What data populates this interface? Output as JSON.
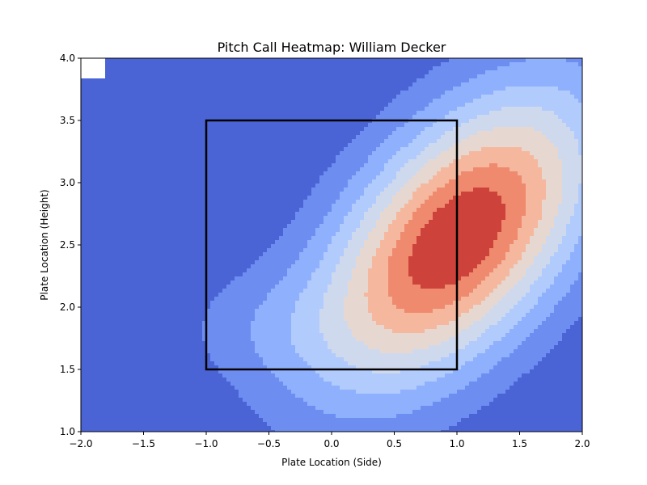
{
  "chart_data": {
    "type": "heatmap",
    "subtype": "filled-contour",
    "title": "Pitch Call Heatmap: William Decker",
    "xlabel": "Plate Location (Side)",
    "ylabel": "Plate Location (Height)",
    "xlim": [
      -2.0,
      2.0
    ],
    "ylim": [
      1.0,
      4.0
    ],
    "xticks": [
      "−2.0",
      "−1.5",
      "−1.0",
      "−0.5",
      "0.0",
      "0.5",
      "1.0",
      "1.5",
      "2.0"
    ],
    "xtick_values": [
      -2.0,
      -1.5,
      -1.0,
      -0.5,
      0.0,
      0.5,
      1.0,
      1.5,
      2.0
    ],
    "yticks": [
      "1.0",
      "1.5",
      "2.0",
      "2.5",
      "3.0",
      "3.5",
      "4.0"
    ],
    "ytick_values": [
      1.0,
      1.5,
      2.0,
      2.5,
      3.0,
      3.5,
      4.0
    ],
    "colormap": "coolwarm",
    "contour_levels": 9,
    "contour_colors": [
      "#ffffff",
      "#4a64d6",
      "#6d8ef0",
      "#8fb0fc",
      "#b1cbfc",
      "#cfd9ee",
      "#e6d8d1",
      "#f5b89e",
      "#ef8a6e",
      "#cd423a"
    ],
    "density_peak": {
      "x": 1.0,
      "y": 2.55
    },
    "strike_zone": {
      "x_min": -1.0,
      "x_max": 1.0,
      "y_min": 1.5,
      "y_max": 3.5,
      "color": "#000000"
    },
    "grid": false,
    "legend": "none"
  }
}
